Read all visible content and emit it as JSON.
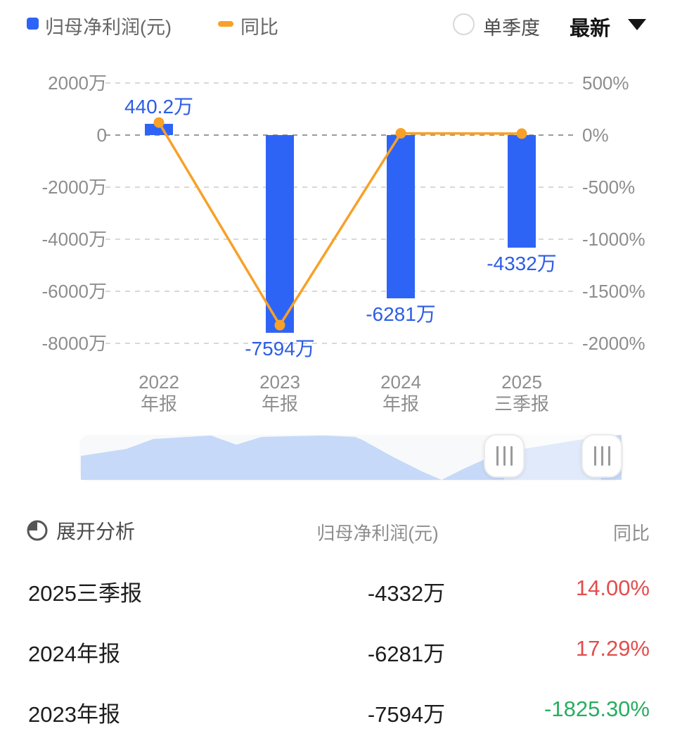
{
  "legend": {
    "profit_label": "归母净利润(元)",
    "yoy_label": "同比",
    "profit_color": "#2E64F6",
    "yoy_color": "#F7A128"
  },
  "controls": {
    "single_quarter_label": "单季度",
    "single_quarter_checked": false,
    "period_selector_label": "最新"
  },
  "chart_data": {
    "type": "bar",
    "categories": [
      {
        "top": "2022",
        "bottom": "年报"
      },
      {
        "top": "2023",
        "bottom": "年报"
      },
      {
        "top": "2024",
        "bottom": "年报"
      },
      {
        "top": "2025",
        "bottom": "三季报"
      }
    ],
    "series": [
      {
        "name": "归母净利润(元)",
        "type": "bar",
        "unit": "万",
        "values": [
          440.2,
          -7594,
          -6281,
          -4332
        ],
        "labels": [
          "440.2万",
          "-7594万",
          "-6281万",
          "-4332万"
        ],
        "color": "#2E64F6"
      },
      {
        "name": "同比",
        "type": "line",
        "unit": "%",
        "values": [
          120,
          -1825.3,
          17.29,
          14.0
        ],
        "estimated_indices": [
          0
        ],
        "color": "#F7A128"
      }
    ],
    "left_axis": {
      "ticks": [
        "2000万",
        "0",
        "-2000万",
        "-4000万",
        "-6000万",
        "-8000万"
      ],
      "range_wan": [
        -8000,
        2000
      ]
    },
    "right_axis": {
      "ticks": [
        "500%",
        "0%",
        "-500%",
        "-1000%",
        "-1500%",
        "-2000%"
      ],
      "range_pct": [
        -2000,
        500
      ]
    },
    "grid": "dashed",
    "legend_position": "top"
  },
  "table": {
    "header": {
      "expand_label": "展开分析",
      "col2": "归母净利润(元)",
      "col3": "同比"
    },
    "rows": [
      {
        "period": "2025三季报",
        "profit": "-4332万",
        "yoy": "14.00%",
        "yoy_color": "#E34D4D"
      },
      {
        "period": "2024年报",
        "profit": "-6281万",
        "yoy": "17.29%",
        "yoy_color": "#E34D4D"
      },
      {
        "period": "2023年报",
        "profit": "-7594万",
        "yoy": "-1825.30%",
        "yoy_color": "#27AE60"
      }
    ],
    "colors": {
      "positive": "#E34D4D",
      "negative": "#27AE60"
    }
  }
}
